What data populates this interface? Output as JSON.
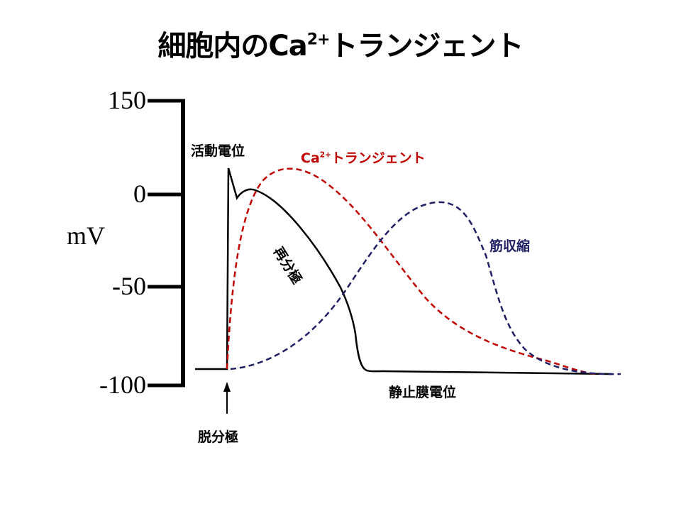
{
  "title": {
    "pre": "細胞内のCa",
    "sup": "2+",
    "post": "トランジェント"
  },
  "axis": {
    "unit_label": "mV",
    "ticks": [
      "150",
      "0",
      "-50",
      "-100"
    ]
  },
  "labels": {
    "action_potential": "活動電位",
    "ca_transient": {
      "pre": "Ca",
      "sup": "2+",
      "post": "トランジェント"
    },
    "contraction": "筋収縮",
    "repolarization": "再分極",
    "resting_potential": "静止膜電位",
    "depolarization": "脱分極"
  },
  "colors": {
    "action_potential": "#000000",
    "ca_transient": "#c00000",
    "contraction": "#1f1f66"
  }
}
